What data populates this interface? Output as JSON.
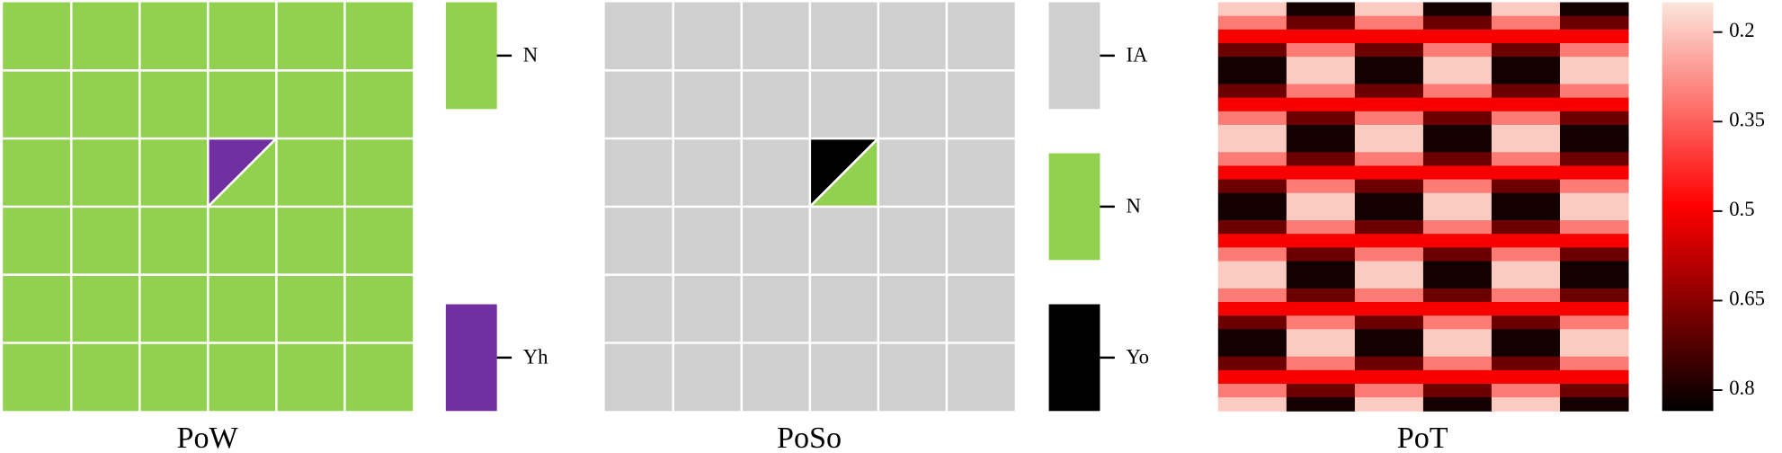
{
  "panels": [
    {
      "title": "PoW",
      "legend": [
        {
          "label": "N",
          "color": "#92d050"
        },
        {
          "label": "Yh",
          "color": "#7030a0"
        }
      ]
    },
    {
      "title": "PoSo",
      "legend": [
        {
          "label": "IA",
          "color": "#d0cfd0"
        },
        {
          "label": "N",
          "color": "#92d050"
        },
        {
          "label": "Yo",
          "color": "#000000"
        }
      ]
    }
  ],
  "heatmap": {
    "title": "PoT",
    "colormap": [
      "#fbe6dc",
      "#ff0000",
      "#000000"
    ],
    "clim": [
      0.15,
      0.835
    ],
    "ticks": [
      0.2,
      0.35,
      0.5,
      0.65,
      0.8
    ],
    "columns": [
      [
        0.19,
        0.31,
        0.5,
        0.69,
        0.81,
        0.81,
        0.69,
        0.5,
        0.31,
        0.19,
        0.19,
        0.31,
        0.5,
        0.69,
        0.81,
        0.81,
        0.69,
        0.5,
        0.31,
        0.19,
        0.19,
        0.31,
        0.5,
        0.69,
        0.81,
        0.81,
        0.69,
        0.5,
        0.31,
        0.19
      ],
      [
        0.81,
        0.69,
        0.5,
        0.31,
        0.19,
        0.19,
        0.31,
        0.5,
        0.69,
        0.81,
        0.81,
        0.69,
        0.5,
        0.31,
        0.19,
        0.19,
        0.31,
        0.5,
        0.69,
        0.81,
        0.81,
        0.69,
        0.5,
        0.31,
        0.19,
        0.19,
        0.31,
        0.5,
        0.69,
        0.81
      ],
      [
        0.19,
        0.31,
        0.5,
        0.69,
        0.81,
        0.81,
        0.69,
        0.5,
        0.31,
        0.19,
        0.19,
        0.31,
        0.5,
        0.69,
        0.81,
        0.81,
        0.69,
        0.5,
        0.31,
        0.19,
        0.19,
        0.31,
        0.5,
        0.69,
        0.81,
        0.81,
        0.69,
        0.5,
        0.31,
        0.19
      ],
      [
        0.81,
        0.69,
        0.5,
        0.31,
        0.19,
        0.19,
        0.31,
        0.5,
        0.69,
        0.81,
        0.81,
        0.69,
        0.5,
        0.31,
        0.19,
        0.19,
        0.31,
        0.5,
        0.69,
        0.81,
        0.81,
        0.69,
        0.5,
        0.31,
        0.19,
        0.19,
        0.31,
        0.5,
        0.69,
        0.81
      ],
      [
        0.19,
        0.31,
        0.5,
        0.69,
        0.81,
        0.81,
        0.69,
        0.5,
        0.31,
        0.19,
        0.19,
        0.31,
        0.5,
        0.69,
        0.81,
        0.81,
        0.69,
        0.5,
        0.31,
        0.19,
        0.19,
        0.31,
        0.5,
        0.69,
        0.81,
        0.81,
        0.69,
        0.5,
        0.31,
        0.19
      ],
      [
        0.81,
        0.69,
        0.5,
        0.31,
        0.19,
        0.19,
        0.31,
        0.5,
        0.69,
        0.81,
        0.81,
        0.69,
        0.5,
        0.31,
        0.19,
        0.19,
        0.31,
        0.5,
        0.69,
        0.81,
        0.81,
        0.69,
        0.5,
        0.31,
        0.19,
        0.19,
        0.31,
        0.5,
        0.69,
        0.81
      ]
    ]
  }
}
